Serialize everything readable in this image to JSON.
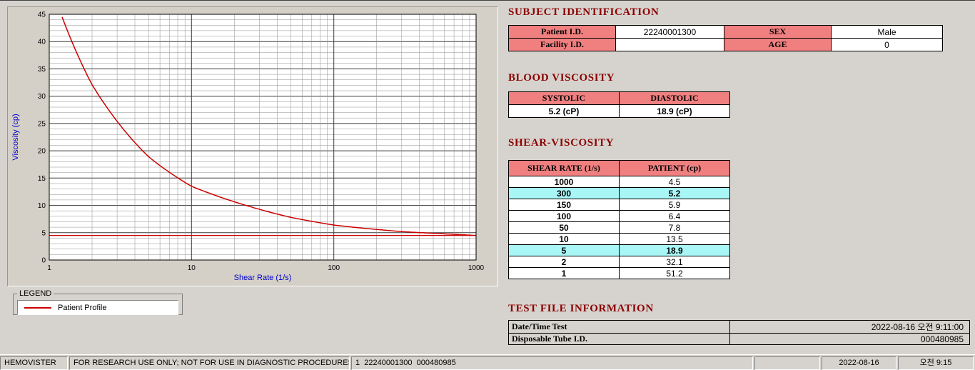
{
  "colors": {
    "header_text": "#8B0000",
    "label_bg": "#F08080",
    "highlight_bg": "#A8F6F6",
    "curve": "#CC0000",
    "axis_label": "#0000C8"
  },
  "chart_data": {
    "type": "line",
    "title": "",
    "xlabel": "Shear Rate (1/s)",
    "ylabel": "Viscosity (cp)",
    "x_scale": "log",
    "xlim": [
      1,
      1000
    ],
    "ylim": [
      0,
      45
    ],
    "x_ticks": [
      1,
      10,
      100,
      1000
    ],
    "y_ticks": [
      0,
      5,
      10,
      15,
      20,
      25,
      30,
      35,
      40,
      45
    ],
    "grid": "on",
    "legend_position": "below-left",
    "series": [
      {
        "name": "Patient Profile",
        "x": [
          1,
          2,
          5,
          10,
          50,
          100,
          150,
          300,
          1000
        ],
        "y": [
          51.2,
          32.1,
          18.9,
          13.5,
          7.8,
          6.4,
          5.9,
          5.2,
          4.5
        ]
      }
    ],
    "reference_line_y": 4.5
  },
  "legend": {
    "title": "LEGEND",
    "series_label": "Patient Profile"
  },
  "subject": {
    "title": "SUBJECT IDENTIFICATION",
    "rows": [
      {
        "label1": "Patient I.D.",
        "value1": "22240001300",
        "label2": "SEX",
        "value2": "Male"
      },
      {
        "label1": "Facility I.D.",
        "value1": "",
        "label2": "AGE",
        "value2": "0"
      }
    ]
  },
  "blood_viscosity": {
    "title": "BLOOD VISCOSITY",
    "headers": [
      "SYSTOLIC",
      "DIASTOLIC"
    ],
    "values": [
      "5.2 (cP)",
      "18.9 (cP)"
    ]
  },
  "shear_viscosity": {
    "title": "SHEAR-VISCOSITY",
    "headers": [
      "SHEAR RATE (1/s)",
      "PATIENT (cp)"
    ],
    "rows": [
      {
        "rate": "1000",
        "value": "4.5",
        "highlight": false
      },
      {
        "rate": "300",
        "value": "5.2",
        "highlight": true
      },
      {
        "rate": "150",
        "value": "5.9",
        "highlight": false
      },
      {
        "rate": "100",
        "value": "6.4",
        "highlight": false
      },
      {
        "rate": "50",
        "value": "7.8",
        "highlight": false
      },
      {
        "rate": "10",
        "value": "13.5",
        "highlight": false
      },
      {
        "rate": "5",
        "value": "18.9",
        "highlight": true
      },
      {
        "rate": "2",
        "value": "32.1",
        "highlight": false
      },
      {
        "rate": "1",
        "value": "51.2",
        "highlight": false
      }
    ]
  },
  "test_file": {
    "title": "TEST FILE INFORMATION",
    "rows": [
      {
        "label": "Date/Time Test",
        "value": "2022-08-16   오전 9:11:00"
      },
      {
        "label": "Disposable Tube I.D.",
        "value": "000480985"
      }
    ]
  },
  "statusbar": {
    "segments": [
      "HEMOVISTER",
      "FOR RESEARCH USE ONLY; NOT FOR USE IN DIAGNOSTIC PROCEDURES",
      "1  22240001300  000480985",
      "",
      "2022-08-16",
      "오전 9:15"
    ]
  }
}
